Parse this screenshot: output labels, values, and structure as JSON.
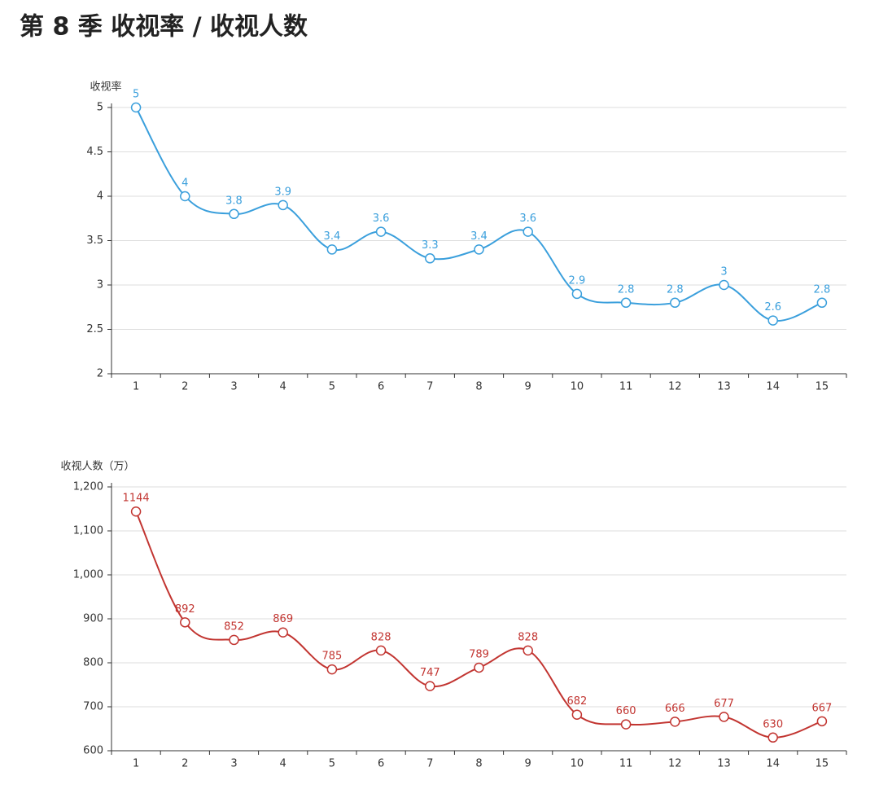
{
  "title": "第 8 季 收视率 / 收视人数",
  "chart_data": [
    {
      "type": "line",
      "y_label": "收视率",
      "categories": [
        "1",
        "2",
        "3",
        "4",
        "5",
        "6",
        "7",
        "8",
        "9",
        "10",
        "11",
        "12",
        "13",
        "14",
        "15"
      ],
      "series": [
        {
          "color": "#3a9fdc",
          "values": [
            5,
            4,
            3.8,
            3.9,
            3.4,
            3.6,
            3.3,
            3.4,
            3.6,
            2.9,
            2.8,
            2.8,
            3,
            2.6,
            2.8
          ]
        }
      ],
      "ylim": [
        2,
        5
      ],
      "yticks": [
        2,
        2.5,
        3,
        3.5,
        4,
        4.5,
        5
      ],
      "grid": true
    },
    {
      "type": "line",
      "y_label": "收视人数（万）",
      "categories": [
        "1",
        "2",
        "3",
        "4",
        "5",
        "6",
        "7",
        "8",
        "9",
        "10",
        "11",
        "12",
        "13",
        "14",
        "15"
      ],
      "series": [
        {
          "color": "#c23531",
          "values": [
            1144,
            892,
            852,
            869,
            785,
            828,
            747,
            789,
            828,
            682,
            660,
            666,
            677,
            630,
            667
          ]
        }
      ],
      "ylim": [
        600,
        1200
      ],
      "yticks": [
        600,
        700,
        800,
        900,
        {
          "value": 1000,
          "label": "1,000"
        },
        {
          "value": 1100,
          "label": "1,100"
        },
        {
          "value": 1200,
          "label": "1,200"
        }
      ],
      "grid": true
    }
  ]
}
